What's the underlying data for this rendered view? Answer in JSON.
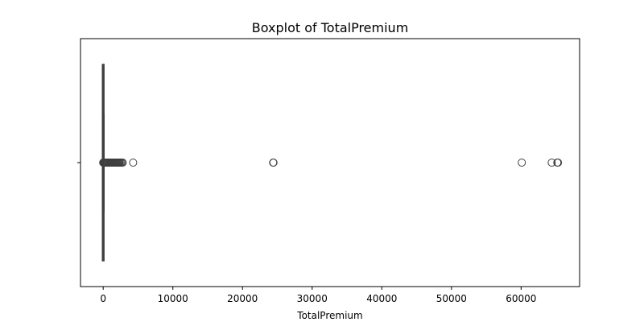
{
  "chart_data": {
    "type": "boxplot",
    "title": "Boxplot of TotalPremium",
    "xlabel": "TotalPremium",
    "ylabel": "",
    "orientation": "horizontal",
    "xlim": [
      -3260,
      68400
    ],
    "xticks": [
      0,
      10000,
      20000,
      30000,
      40000,
      50000,
      60000
    ],
    "xtick_labels": [
      "0",
      "10000",
      "20000",
      "30000",
      "40000",
      "50000",
      "60000"
    ],
    "grid": false,
    "line_color": "#3f3f3f",
    "series": [
      {
        "whisker_low": 0,
        "q1": 0,
        "median": 0,
        "q3": 5,
        "whisker_high": 12,
        "outliers": [
          0,
          30,
          60,
          100,
          150,
          200,
          260,
          320,
          400,
          480,
          560,
          650,
          750,
          850,
          950,
          1050,
          1150,
          1250,
          1350,
          1450,
          1550,
          1650,
          1750,
          1850,
          1950,
          2050,
          2150,
          2250,
          2350,
          2500,
          2650,
          2800,
          4300,
          24400,
          24450,
          60100,
          64400,
          65200,
          65300
        ]
      }
    ]
  }
}
